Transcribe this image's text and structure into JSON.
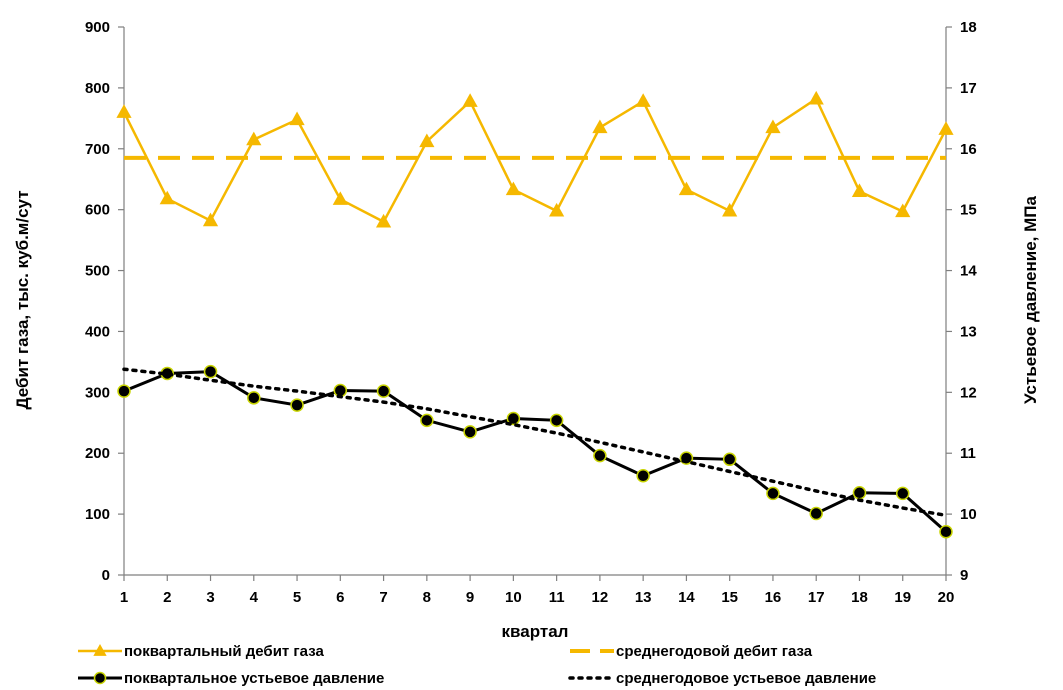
{
  "chart_data": {
    "type": "line",
    "xlabel": "квартал",
    "ylabel": "Дебит газа, тыс. куб.м/сут",
    "y2label": "Устьевое давление, МПа",
    "x": [
      1,
      2,
      3,
      4,
      5,
      6,
      7,
      8,
      9,
      10,
      11,
      12,
      13,
      14,
      15,
      16,
      17,
      18,
      19,
      20
    ],
    "xlim": [
      1,
      20
    ],
    "ylim": [
      0,
      900
    ],
    "y2lim": [
      9,
      18
    ],
    "yticks": [
      0,
      100,
      200,
      300,
      400,
      500,
      600,
      700,
      800,
      900
    ],
    "y2ticks": [
      9,
      10,
      11,
      12,
      13,
      14,
      15,
      16,
      17,
      18
    ],
    "grid": false,
    "legend_position": "bottom",
    "colors": {
      "gas": "#f5b800",
      "pressure": "#000000",
      "marker_fill": "#c8d400"
    },
    "series": [
      {
        "name": "поквартальный дебит газа",
        "axis": "left",
        "style": "solid-triangle",
        "values": [
          760,
          618,
          582,
          715,
          748,
          617,
          580,
          712,
          778,
          633,
          598,
          735,
          778,
          633,
          598,
          735,
          782,
          630,
          597,
          732
        ]
      },
      {
        "name": "среднегодовой дебит газа",
        "axis": "left",
        "style": "dashed",
        "values": [
          685,
          685,
          685,
          685,
          685,
          685,
          685,
          685,
          685,
          685,
          685,
          685,
          685,
          685,
          685,
          685,
          685,
          685,
          685,
          685
        ]
      },
      {
        "name": "поквартальное устьевое давление",
        "axis": "right",
        "style": "solid-circle",
        "values": [
          12.02,
          12.31,
          12.34,
          11.91,
          11.79,
          12.03,
          12.02,
          11.54,
          11.35,
          11.57,
          11.54,
          10.96,
          10.63,
          10.92,
          10.9,
          10.34,
          10.01,
          10.35,
          10.34,
          9.71
        ]
      },
      {
        "name": "среднегодовое устьевое давление",
        "axis": "right",
        "style": "dotted",
        "values": [
          12.38,
          12.3,
          12.2,
          12.1,
          12.02,
          11.93,
          11.84,
          11.73,
          11.6,
          11.47,
          11.33,
          11.18,
          11.02,
          10.86,
          10.7,
          10.54,
          10.38,
          10.23,
          10.1,
          9.98
        ]
      }
    ]
  }
}
